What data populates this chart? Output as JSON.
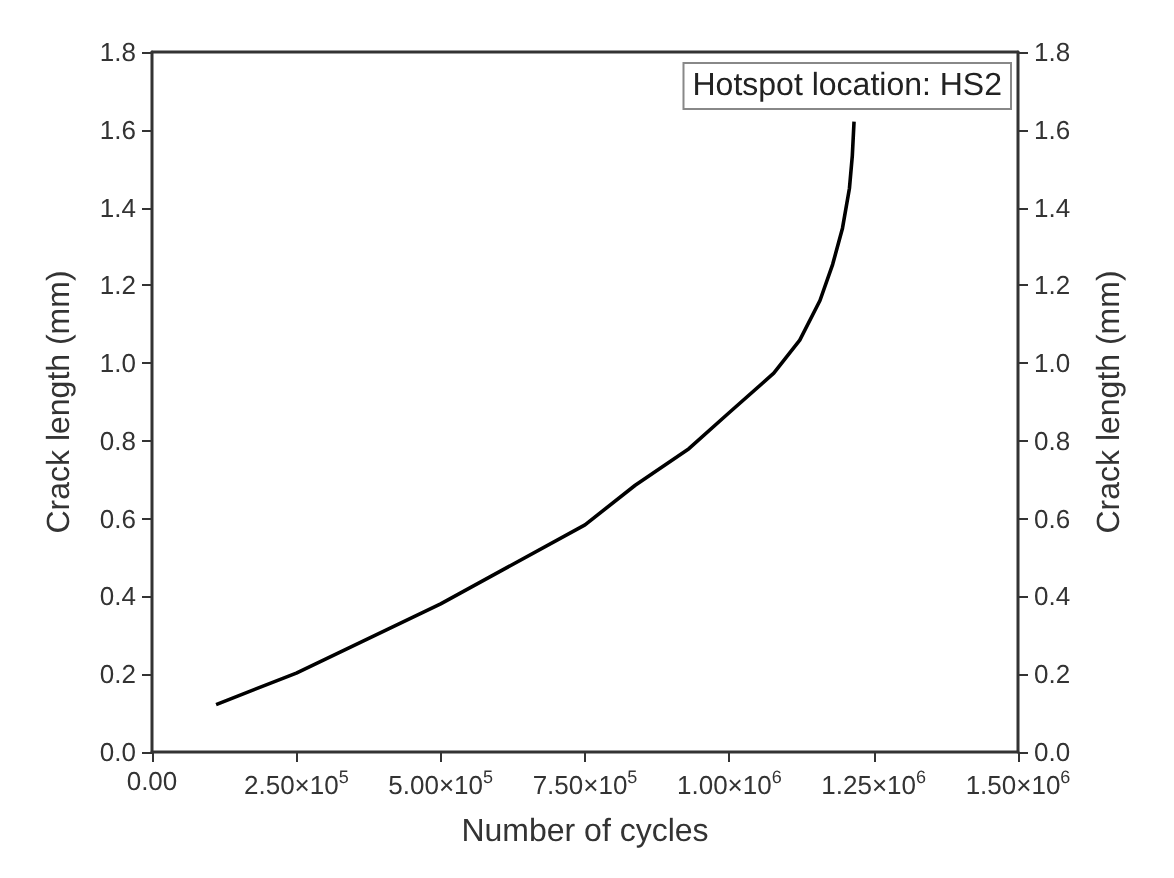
{
  "chart_data": {
    "type": "line",
    "xlabel": "Number of cycles",
    "ylabel": "Crack length (mm)",
    "y2label": "Crack length (mm)",
    "annotations": [
      "Hotspot location: HS2"
    ],
    "x": [
      111000,
      250000,
      500000,
      750000,
      837000,
      930000,
      1000000,
      1077000,
      1122000,
      1157000,
      1179000,
      1196000,
      1208000,
      1213000,
      1216000
    ],
    "series": [
      {
        "color": "#000000",
        "values": [
          0.122,
          0.203,
          0.381,
          0.584,
          0.686,
          0.78,
          0.873,
          0.974,
          1.059,
          1.161,
          1.254,
          1.347,
          1.449,
          1.533,
          1.621
        ]
      }
    ],
    "xlim": [
      0,
      1500000
    ],
    "xticks": [
      {
        "value": 0,
        "label": "0.00"
      },
      {
        "value": 250000,
        "label": "2.50×10$^{5}$"
      },
      {
        "value": 500000,
        "label": "5.00×10$^{5}$"
      },
      {
        "value": 750000,
        "label": "7.50×10$^{5}$"
      },
      {
        "value": 1000000,
        "label": "1.00×10$^{6}$"
      },
      {
        "value": 1250000,
        "label": "1.25×10$^{6}$"
      },
      {
        "value": 1500000,
        "label": "1.50×10$^{6}$"
      }
    ],
    "ylim": [
      0,
      1.8
    ],
    "yticks": [
      {
        "value": 0,
        "label": "0.0"
      },
      {
        "value": 0.2,
        "label": "0.2"
      },
      {
        "value": 0.4,
        "label": "0.4"
      },
      {
        "value": 0.6,
        "label": "0.6"
      },
      {
        "value": 0.8,
        "label": "0.8"
      },
      {
        "value": 1,
        "label": "1.0"
      },
      {
        "value": 1.2,
        "label": "1.2"
      },
      {
        "value": 1.4,
        "label": "1.4"
      },
      {
        "value": 1.6,
        "label": "1.6"
      },
      {
        "value": 1.8,
        "label": "1.8"
      }
    ],
    "y2lim": [
      0,
      1.8
    ],
    "y2ticks": [
      {
        "value": 0,
        "label": "0.0"
      },
      {
        "value": 0.2,
        "label": "0.2"
      },
      {
        "value": 0.4,
        "label": "0.4"
      },
      {
        "value": 0.6,
        "label": "0.6"
      },
      {
        "value": 0.8,
        "label": "0.8"
      },
      {
        "value": 1,
        "label": "1.0"
      },
      {
        "value": 1.2,
        "label": "1.2"
      },
      {
        "value": 1.4,
        "label": "1.4"
      },
      {
        "value": 1.6,
        "label": "1.6"
      },
      {
        "value": 1.8,
        "label": "1.8"
      }
    ],
    "marker": "none",
    "line_style": "solid",
    "grid": false
  }
}
